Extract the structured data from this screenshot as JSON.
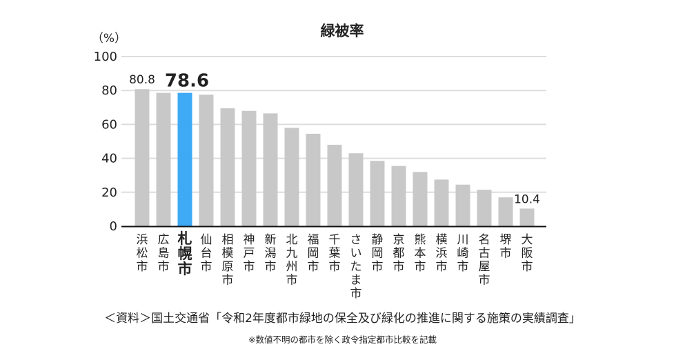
{
  "chart_data": {
    "type": "bar",
    "title": "緑被率",
    "ylabel": "（%）",
    "ylim": [
      0,
      100
    ],
    "yticks": [
      0,
      20,
      40,
      60,
      80,
      100
    ],
    "grid": true,
    "categories": [
      "浜松市",
      "広島市",
      "札幌市",
      "仙台市",
      "相模原市",
      "神戸市",
      "新潟市",
      "北九州市",
      "福岡市",
      "千葉市",
      "さいたま市",
      "静岡市",
      "京都市",
      "熊本市",
      "横浜市",
      "川崎市",
      "名古屋市",
      "堺市",
      "大阪市"
    ],
    "values": [
      80.8,
      78.6,
      78.6,
      77.5,
      69.5,
      68.0,
      66.5,
      58.0,
      54.5,
      48.0,
      43.0,
      38.5,
      35.5,
      32.0,
      27.5,
      24.5,
      21.5,
      17.0,
      10.4
    ],
    "highlight_category": "札幌市",
    "data_labels": [
      {
        "category": "浜松市",
        "text": "80.8"
      },
      {
        "category": "札幌市",
        "text": "78.6"
      },
      {
        "category": "大阪市",
        "text": "10.4"
      }
    ],
    "colors": {
      "bar": "#c8c8c8",
      "highlight": "#3ea9f5",
      "grid": "#dddddd",
      "axis": "#111111"
    }
  },
  "footer": {
    "source": "＜資料＞国土交通省「令和2年度都市緑地の保全及び緑化の推進に関する施策の実績調査」",
    "note": "※数値不明の都市を除く政令指定都市比較を記載"
  }
}
